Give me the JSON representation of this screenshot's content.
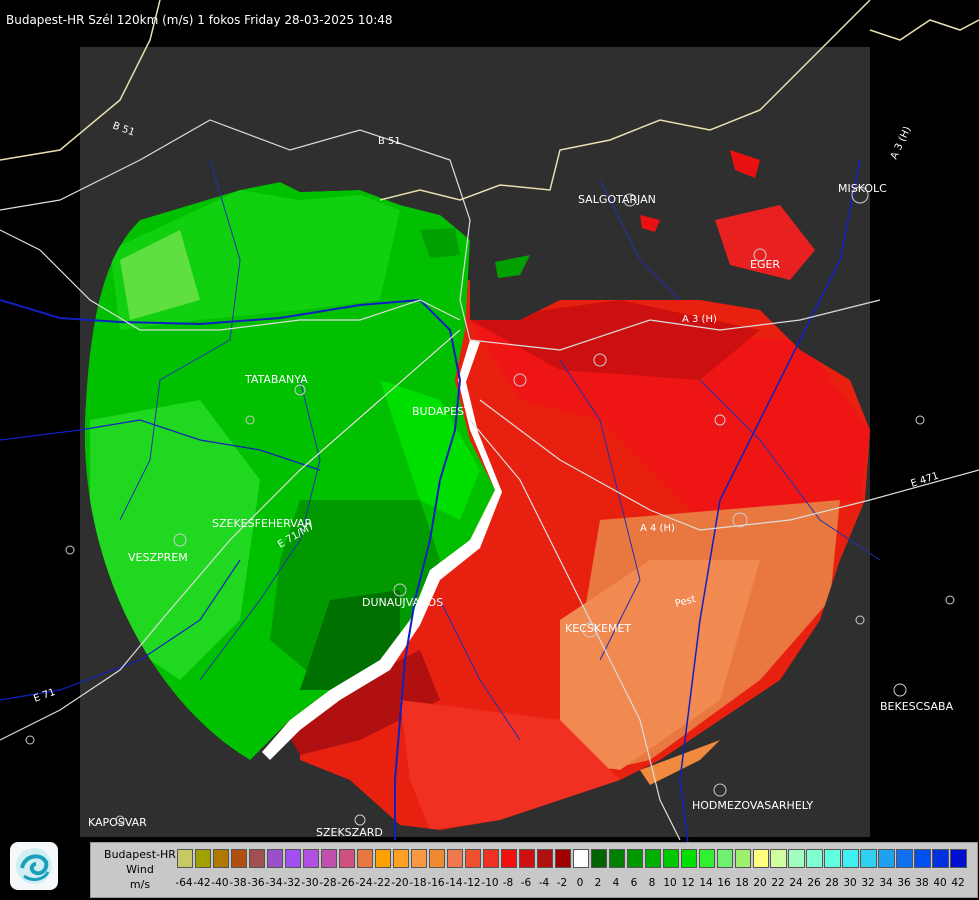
{
  "header": {
    "title": "Budapest-HR Szél 120km (m/s) 1 fokos Friday 28-03-2025 10:48"
  },
  "map": {
    "cities": [
      {
        "name": "SALGOTARJAN"
      },
      {
        "name": "EGER"
      },
      {
        "name": "MISKOLC"
      },
      {
        "name": "TATABANYA"
      },
      {
        "name": "BUDAPEST"
      },
      {
        "name": "SZEKESFEHERVAR"
      },
      {
        "name": "VESZPREM"
      },
      {
        "name": "DUNAUJVAROS"
      },
      {
        "name": "KECSKEMET"
      },
      {
        "name": "HODMEZOVASARHELY"
      },
      {
        "name": "BEKESCSABA"
      },
      {
        "name": "KAPOSVAR"
      },
      {
        "name": "SZEKSZARD"
      }
    ],
    "roads": [
      "B 51",
      "B 51",
      "A 3 (H)",
      "A 3 (H)",
      "A 4 (H)",
      "E 71/M7",
      "E 71",
      "E 471",
      "Pest"
    ]
  },
  "legend": {
    "line1": "Budapest-HR",
    "line2": "Wind",
    "line3": "m/s",
    "swatches": [
      {
        "label": "-64",
        "color": "#c8c864"
      },
      {
        "label": "-42",
        "color": "#a0a000"
      },
      {
        "label": "-40",
        "color": "#b07800"
      },
      {
        "label": "-38",
        "color": "#b05010"
      },
      {
        "label": "-36",
        "color": "#a05050"
      },
      {
        "label": "-34",
        "color": "#9a50c8"
      },
      {
        "label": "-32",
        "color": "#a050f0"
      },
      {
        "label": "-30",
        "color": "#b050e0"
      },
      {
        "label": "-28",
        "color": "#c050b0"
      },
      {
        "label": "-26",
        "color": "#d05080"
      },
      {
        "label": "-24",
        "color": "#e87840"
      },
      {
        "label": "-22",
        "color": "#ffa000"
      },
      {
        "label": "-20",
        "color": "#ffa020"
      },
      {
        "label": "-18",
        "color": "#f89840"
      },
      {
        "label": "-16",
        "color": "#f08a30"
      },
      {
        "label": "-14",
        "color": "#f07850"
      },
      {
        "label": "-12",
        "color": "#f05030"
      },
      {
        "label": "-10",
        "color": "#f03020"
      },
      {
        "label": "-8",
        "color": "#f01010"
      },
      {
        "label": "-6",
        "color": "#d01010"
      },
      {
        "label": "-4",
        "color": "#b01010"
      },
      {
        "label": "-2",
        "color": "#a00000"
      },
      {
        "label": "0",
        "color": "#ffffff"
      },
      {
        "label": "2",
        "color": "#006400"
      },
      {
        "label": "4",
        "color": "#008000"
      },
      {
        "label": "6",
        "color": "#009a00"
      },
      {
        "label": "8",
        "color": "#00b000"
      },
      {
        "label": "10",
        "color": "#00c800"
      },
      {
        "label": "12",
        "color": "#00e000"
      },
      {
        "label": "14",
        "color": "#30f030"
      },
      {
        "label": "16",
        "color": "#70f070"
      },
      {
        "label": "18",
        "color": "#a0f070"
      },
      {
        "label": "20",
        "color": "#ffff80"
      },
      {
        "label": "22",
        "color": "#d0ffa0"
      },
      {
        "label": "24",
        "color": "#a0ffc0"
      },
      {
        "label": "26",
        "color": "#80ffd0"
      },
      {
        "label": "28",
        "color": "#60ffe0"
      },
      {
        "label": "30",
        "color": "#40f0f0"
      },
      {
        "label": "32",
        "color": "#30d0f0"
      },
      {
        "label": "34",
        "color": "#20a0f0"
      },
      {
        "label": "36",
        "color": "#1070f0"
      },
      {
        "label": "38",
        "color": "#0050f0"
      },
      {
        "label": "40",
        "color": "#0030e0"
      },
      {
        "label": "42",
        "color": "#0010d0"
      }
    ]
  }
}
